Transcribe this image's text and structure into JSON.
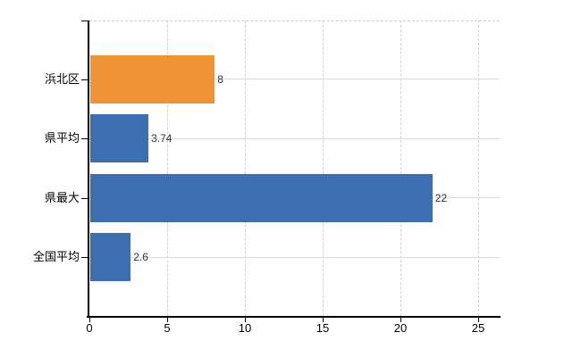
{
  "chart_data": {
    "type": "bar",
    "orientation": "horizontal",
    "title": "",
    "xlabel": "",
    "ylabel": "",
    "categories": [
      "浜北区",
      "県平均",
      "県最大",
      "全国平均"
    ],
    "values": [
      8,
      3.74,
      22,
      2.6
    ],
    "value_labels": [
      "8",
      "3.74",
      "22",
      "2.6"
    ],
    "bar_colors": [
      "#ee9336",
      "#3d6eb2",
      "#3d6eb2",
      "#3d6eb2"
    ],
    "xlim": [
      0,
      25
    ],
    "x_ticks": [
      0,
      5,
      10,
      15,
      20,
      25
    ],
    "x_tick_labels": [
      "0",
      "5",
      "10",
      "15",
      "20",
      "25"
    ],
    "grid": "on",
    "legend": "none",
    "colors": {
      "highlight_bar": "#ee9336",
      "default_bar": "#3d6eb2",
      "axis": "#000000",
      "h_gridline": "#d9ddd9",
      "v_gridline": "#d2ced2",
      "category_label": "#000000",
      "value_label": "#333333",
      "background": "#ffffff"
    }
  }
}
